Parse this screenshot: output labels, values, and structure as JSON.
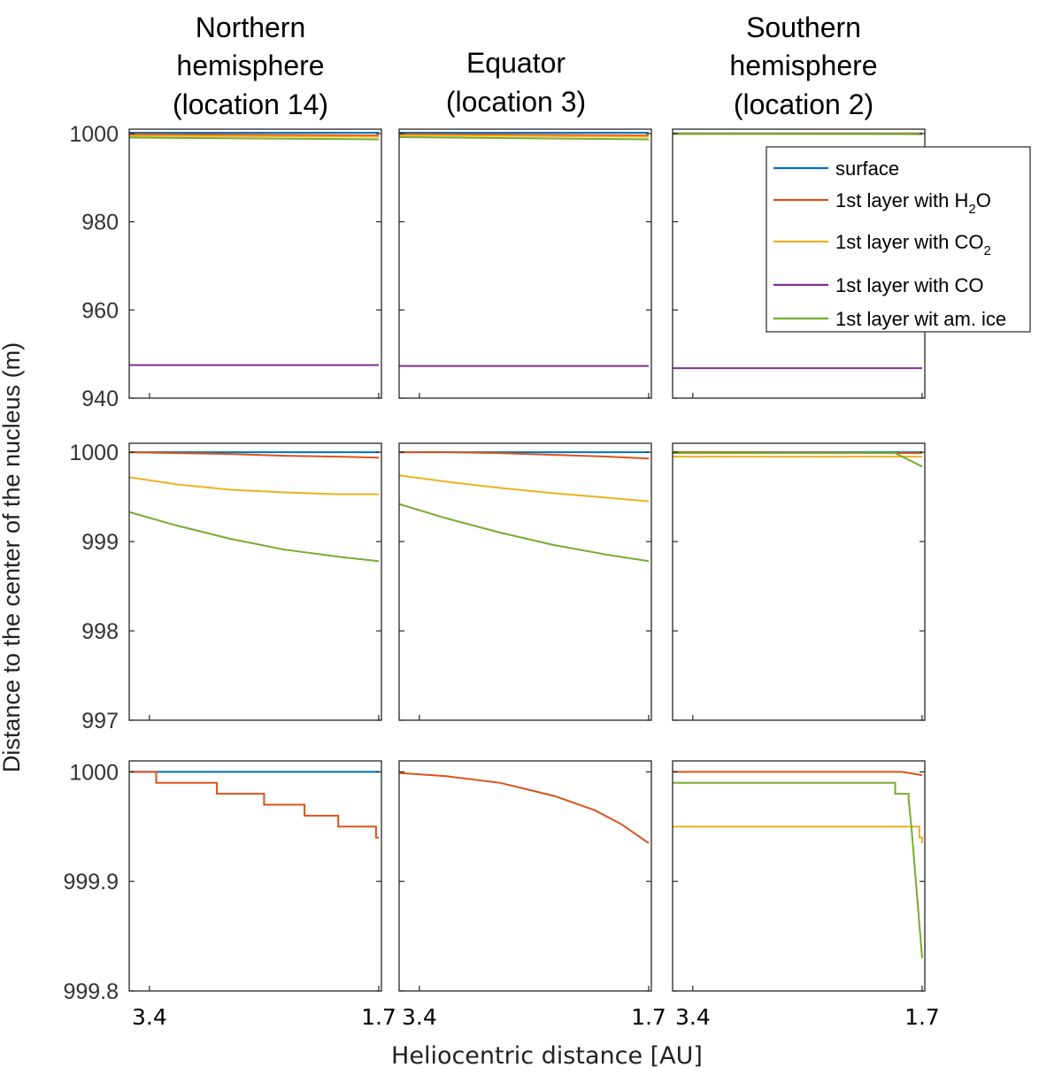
{
  "figure": {
    "columns": [
      {
        "title_lines": [
          "Northern",
          "hemisphere",
          "(location 14)"
        ]
      },
      {
        "title_lines": [
          "Equator",
          "(location 3)"
        ]
      },
      {
        "title_lines": [
          "Southern",
          "hemisphere",
          "(location 2)"
        ]
      }
    ],
    "ylabel": "Distance to the center of the nucleus (m)",
    "xlabel": "Heliocentric distance [AU]",
    "legend": {
      "placement": "top-right",
      "entries": [
        {
          "series": "surface",
          "text": "surface",
          "sub": "",
          "tail": ""
        },
        {
          "series": "h2o",
          "text": "1st layer with H",
          "sub": "2",
          "tail": "O"
        },
        {
          "series": "co2",
          "text": "1st layer with CO",
          "sub": "2",
          "tail": ""
        },
        {
          "series": "co",
          "text": "1st layer with CO",
          "sub": "",
          "tail": ""
        },
        {
          "series": "am",
          "text": "1st layer wit am. ice",
          "sub": "",
          "tail": ""
        }
      ]
    }
  },
  "colors": {
    "surface": "#0072BD",
    "h2o": "#D95319",
    "co2": "#EDB120",
    "co": "#7E2F8E",
    "am": "#77AC30"
  },
  "chart_data": {
    "type": "line",
    "x_axis": {
      "xlim": [
        3.55,
        1.68
      ],
      "xticks": [
        3.4,
        1.7
      ],
      "xtick_labels": [
        "3.4",
        "1.7"
      ]
    },
    "rows": [
      {
        "ylim": [
          940,
          1001
        ],
        "yticks": [
          940,
          960,
          980,
          1000
        ],
        "ytick_labels": [
          "940",
          "960",
          "980",
          "1000"
        ]
      },
      {
        "ylim": [
          997,
          1000.1
        ],
        "yticks": [
          997,
          998,
          999,
          1000
        ],
        "ytick_labels": [
          "997",
          "998",
          "999",
          "1000"
        ]
      },
      {
        "ylim": [
          999.8,
          1000.01
        ],
        "yticks": [
          999.8,
          999.9,
          1000
        ],
        "ytick_labels": [
          "999.8",
          "999.9",
          "1000"
        ]
      }
    ],
    "panels": [
      {
        "row": 0,
        "col": 0,
        "series": [
          {
            "key": "surface",
            "x": [
              3.55,
              1.7
            ],
            "y": [
              1000.2,
              1000.2
            ]
          },
          {
            "key": "h2o",
            "x": [
              3.55,
              1.7
            ],
            "y": [
              999.9,
              999.6
            ]
          },
          {
            "key": "co2",
            "x": [
              3.55,
              1.7
            ],
            "y": [
              999.5,
              999.3
            ]
          },
          {
            "key": "am",
            "x": [
              3.55,
              1.7
            ],
            "y": [
              999.1,
              998.7
            ]
          },
          {
            "key": "co",
            "x": [
              3.55,
              1.7
            ],
            "y": [
              947.5,
              947.5
            ]
          }
        ]
      },
      {
        "row": 0,
        "col": 1,
        "series": [
          {
            "key": "surface",
            "x": [
              3.55,
              1.7
            ],
            "y": [
              1000.2,
              1000.2
            ]
          },
          {
            "key": "h2o",
            "x": [
              3.55,
              1.7
            ],
            "y": [
              999.9,
              999.6
            ]
          },
          {
            "key": "co2",
            "x": [
              3.55,
              1.7
            ],
            "y": [
              999.6,
              999.3
            ]
          },
          {
            "key": "am",
            "x": [
              3.55,
              1.7
            ],
            "y": [
              999.2,
              998.7
            ]
          },
          {
            "key": "co",
            "x": [
              3.55,
              1.7
            ],
            "y": [
              947.3,
              947.3
            ]
          }
        ]
      },
      {
        "row": 0,
        "col": 2,
        "series": [
          {
            "key": "surface",
            "x": [
              3.55,
              1.7
            ],
            "y": [
              1000.05,
              1000.05
            ]
          },
          {
            "key": "h2o",
            "x": [
              3.55,
              1.7
            ],
            "y": [
              1000,
              1000
            ]
          },
          {
            "key": "co2",
            "x": [
              3.55,
              1.7
            ],
            "y": [
              999.9,
              999.9
            ]
          },
          {
            "key": "am",
            "x": [
              3.55,
              1.7
            ],
            "y": [
              999.95,
              999.85
            ]
          },
          {
            "key": "co",
            "x": [
              3.55,
              1.7
            ],
            "y": [
              946.8,
              946.8
            ]
          }
        ]
      },
      {
        "row": 1,
        "col": 0,
        "series": [
          {
            "key": "surface",
            "x": [
              3.55,
              1.7
            ],
            "y": [
              1000,
              1000
            ]
          },
          {
            "key": "h2o",
            "x": [
              3.55,
              3.2,
              2.8,
              2.4,
              2.0,
              1.7
            ],
            "y": [
              1000,
              999.99,
              999.98,
              999.96,
              999.95,
              999.94
            ]
          },
          {
            "key": "co2",
            "x": [
              3.55,
              3.2,
              2.8,
              2.4,
              2.0,
              1.7
            ],
            "y": [
              999.72,
              999.64,
              999.58,
              999.55,
              999.53,
              999.53
            ]
          },
          {
            "key": "am",
            "x": [
              3.55,
              3.2,
              2.8,
              2.4,
              2.0,
              1.7
            ],
            "y": [
              999.33,
              999.18,
              999.03,
              998.91,
              998.83,
              998.78
            ]
          }
        ]
      },
      {
        "row": 1,
        "col": 1,
        "series": [
          {
            "key": "surface",
            "x": [
              3.55,
              1.7
            ],
            "y": [
              1000,
              1000
            ]
          },
          {
            "key": "h2o",
            "x": [
              3.55,
              3.2,
              2.8,
              2.4,
              2.0,
              1.7
            ],
            "y": [
              1000,
              1000,
              999.99,
              999.97,
              999.95,
              999.93
            ]
          },
          {
            "key": "co2",
            "x": [
              3.55,
              3.2,
              2.8,
              2.4,
              2.0,
              1.7
            ],
            "y": [
              999.74,
              999.67,
              999.6,
              999.54,
              999.49,
              999.45
            ]
          },
          {
            "key": "am",
            "x": [
              3.55,
              3.2,
              2.8,
              2.4,
              2.0,
              1.7
            ],
            "y": [
              999.42,
              999.26,
              999.1,
              998.96,
              998.85,
              998.78
            ]
          }
        ]
      },
      {
        "row": 1,
        "col": 2,
        "series": [
          {
            "key": "surface",
            "x": [
              3.55,
              1.7
            ],
            "y": [
              1000,
              1000
            ]
          },
          {
            "key": "h2o",
            "x": [
              3.55,
              1.7
            ],
            "y": [
              1000,
              999.99
            ]
          },
          {
            "key": "co2",
            "x": [
              3.55,
              1.7
            ],
            "y": [
              999.95,
              999.95
            ]
          },
          {
            "key": "am",
            "x": [
              3.55,
              1.9,
              1.7
            ],
            "y": [
              999.99,
              999.99,
              999.84
            ]
          }
        ]
      },
      {
        "row": 2,
        "col": 0,
        "series": [
          {
            "key": "surface",
            "x": [
              3.55,
              1.7
            ],
            "y": [
              1000,
              1000
            ]
          },
          {
            "key": "h2o",
            "x": [
              3.55,
              3.35,
              3.35,
              2.9,
              2.9,
              2.55,
              2.55,
              2.25,
              2.25,
              2.0,
              2.0,
              1.72,
              1.72,
              1.7
            ],
            "y": [
              1000,
              1000,
              999.99,
              999.99,
              999.98,
              999.98,
              999.97,
              999.97,
              999.96,
              999.96,
              999.95,
              999.95,
              999.94,
              999.94
            ]
          }
        ]
      },
      {
        "row": 2,
        "col": 1,
        "series": [
          {
            "key": "h2o",
            "x": [
              3.55,
              3.2,
              2.8,
              2.4,
              2.1,
              1.9,
              1.7
            ],
            "y": [
              999.999,
              999.996,
              999.99,
              999.978,
              999.965,
              999.952,
              999.935
            ]
          }
        ]
      },
      {
        "row": 2,
        "col": 2,
        "series": [
          {
            "key": "h2o",
            "x": [
              3.55,
              1.85,
              1.7
            ],
            "y": [
              1000,
              1000,
              999.997
            ]
          },
          {
            "key": "co2",
            "x": [
              3.55,
              1.76,
              1.72,
              1.72,
              1.7,
              1.7
            ],
            "y": [
              999.95,
              999.95,
              999.95,
              999.94,
              999.94,
              999.935
            ]
          },
          {
            "key": "am",
            "x": [
              3.55,
              1.9,
              1.9,
              1.8,
              1.8,
              1.78,
              1.7
            ],
            "y": [
              999.99,
              999.99,
              999.98,
              999.98,
              999.975,
              999.95,
              999.83
            ]
          }
        ]
      }
    ]
  }
}
